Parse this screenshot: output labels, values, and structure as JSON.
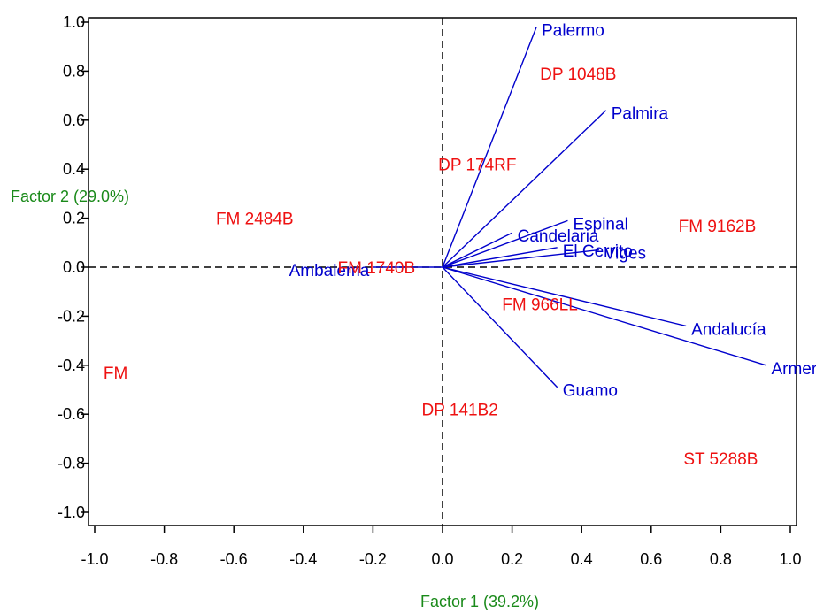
{
  "chart_data": {
    "type": "scatter",
    "title": "",
    "xlabel": "Factor 1 (39.2%)",
    "ylabel": "Factor 2 (29.0%)",
    "xlim": [
      -1.0,
      1.0
    ],
    "ylim": [
      -1.0,
      1.0
    ],
    "xticks": [
      "-1.0",
      "-0.8",
      "-0.6",
      "-0.4",
      "-0.2",
      "0.0",
      "0.2",
      "0.4",
      "0.6",
      "0.8",
      "1.0"
    ],
    "yticks": [
      "1.0",
      "0.8",
      "0.6",
      "0.4",
      "0.2",
      "0.0",
      "-0.2",
      "-0.4",
      "-0.6",
      "-0.8",
      "-1.0"
    ],
    "grid": false,
    "reference_lines": {
      "x": 0,
      "y": 0,
      "style": "dashed"
    },
    "colors": {
      "environments": "#0000cc",
      "genotypes": "#ee1111",
      "axis_titles": "#1a8a1a"
    },
    "environments": [
      {
        "label": "Palermo",
        "x": 0.27,
        "y": 0.98
      },
      {
        "label": "Palmira",
        "x": 0.47,
        "y": 0.64
      },
      {
        "label": "Espinal",
        "x": 0.36,
        "y": 0.19
      },
      {
        "label": "Candelaria",
        "x": 0.2,
        "y": 0.14
      },
      {
        "label": "El Cerrito",
        "x": 0.33,
        "y": 0.08
      },
      {
        "label": "Viges",
        "x": 0.45,
        "y": 0.07
      },
      {
        "label": "Ambalema",
        "x": -0.2,
        "y": 0.0
      },
      {
        "label": "Andalucía",
        "x": 0.7,
        "y": -0.24
      },
      {
        "label": "Armero",
        "x": 0.93,
        "y": -0.4
      },
      {
        "label": "Guamo",
        "x": 0.33,
        "y": -0.49
      }
    ],
    "genotypes": [
      {
        "label": "DP 1048B",
        "x": 0.39,
        "y": 0.79
      },
      {
        "label": "DP 174RF",
        "x": 0.1,
        "y": 0.42
      },
      {
        "label": "FM 2484B",
        "x": -0.54,
        "y": 0.2
      },
      {
        "label": "FM 9162B",
        "x": 0.79,
        "y": 0.17
      },
      {
        "label": "FM 1740B",
        "x": -0.19,
        "y": 0.0
      },
      {
        "label": "FM 966LL",
        "x": 0.28,
        "y": -0.15
      },
      {
        "label": "FM",
        "x": -0.94,
        "y": -0.43
      },
      {
        "label": "DP 141B2",
        "x": 0.05,
        "y": -0.58
      },
      {
        "label": "ST 5288B",
        "x": 0.8,
        "y": -0.78
      }
    ]
  }
}
